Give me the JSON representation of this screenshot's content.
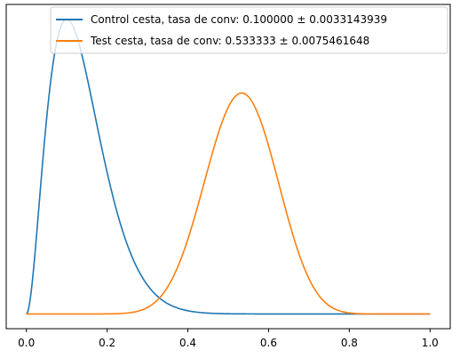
{
  "chart_data": {
    "type": "line",
    "title": "",
    "xlabel": "",
    "ylabel": "",
    "xlim": [
      -0.05,
      1.05
    ],
    "x_ticks": [
      "0.0",
      "0.2",
      "0.4",
      "0.6",
      "0.8",
      "1.0"
    ],
    "y_ticks": [],
    "grid": false,
    "legend_location": "top-right",
    "series": [
      {
        "name": "Control cesta, tasa de conv: 0.100000 ± 0.0033143939",
        "color": "#1f77b4",
        "distribution": "beta",
        "alpha": 3,
        "beta": 19,
        "x": [
          0.0,
          0.02,
          0.04,
          0.06,
          0.08,
          0.1,
          0.12,
          0.14,
          0.16,
          0.2,
          0.25,
          0.3,
          0.35,
          0.4,
          0.5,
          0.6,
          0.8,
          1.0
        ],
        "y": [
          0.0,
          1.4,
          3.9,
          5.9,
          7.0,
          7.3,
          6.9,
          6.1,
          5.1,
          3.2,
          1.5,
          0.6,
          0.2,
          0.06,
          0.0,
          0.0,
          0.0,
          0.0
        ]
      },
      {
        "name": "Test cesta, tasa de conv: 0.533333 ± 0.0075461648",
        "color": "#ff7f0e",
        "distribution": "beta",
        "alpha": 17,
        "beta": 15,
        "x": [
          0.0,
          0.2,
          0.3,
          0.35,
          0.4,
          0.45,
          0.5,
          0.53,
          0.55,
          0.6,
          0.65,
          0.7,
          0.75,
          0.8,
          0.9,
          1.0
        ],
        "y": [
          0.0,
          0.0,
          0.1,
          0.4,
          1.2,
          2.6,
          4.0,
          4.6,
          4.4,
          3.8,
          2.4,
          1.1,
          0.35,
          0.07,
          0.0,
          0.0
        ]
      }
    ]
  }
}
